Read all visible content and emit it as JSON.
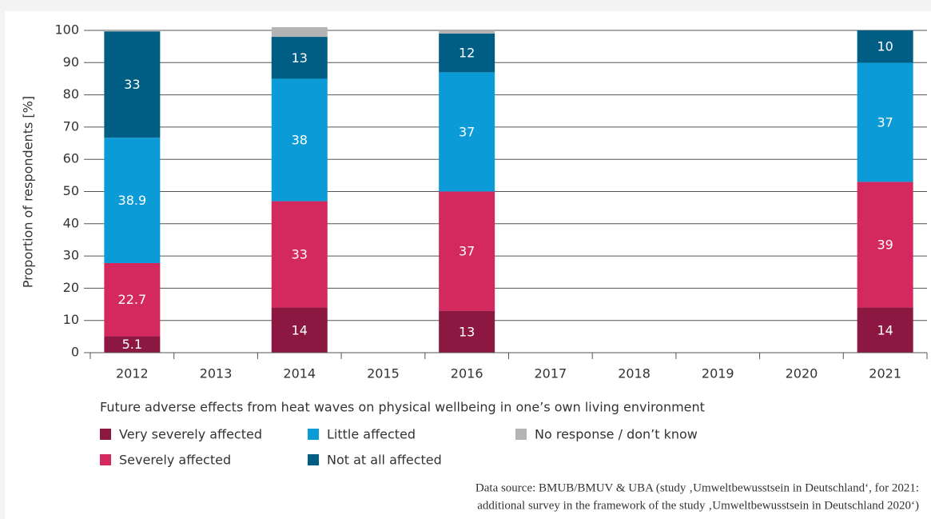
{
  "chart_data": {
    "type": "stacked_bar",
    "y_label": "Proportion of respondents [%]",
    "legend_title": "Future adverse effects from heat waves on physical wellbeing in one’s own living environment",
    "categories": [
      "2012",
      "2013",
      "2014",
      "2015",
      "2016",
      "2017",
      "2018",
      "2019",
      "2020",
      "2021"
    ],
    "series": [
      {
        "name": "Very severely affected",
        "color": "#8c1842",
        "values": [
          5.1,
          null,
          14,
          null,
          13,
          null,
          null,
          null,
          null,
          14
        ]
      },
      {
        "name": "Severely affected",
        "color": "#d4295e",
        "values": [
          22.7,
          null,
          33,
          null,
          37,
          null,
          null,
          null,
          null,
          39
        ]
      },
      {
        "name": "Little affected",
        "color": "#0b9bd7",
        "values": [
          38.9,
          null,
          38,
          null,
          37,
          null,
          null,
          null,
          null,
          37
        ]
      },
      {
        "name": "Not at all affected",
        "color": "#005e84",
        "values": [
          33,
          null,
          13,
          null,
          12,
          null,
          null,
          null,
          null,
          10
        ]
      },
      {
        "name": "No response / don’t know",
        "color": "#b4b4b4",
        "values": [
          0.3,
          null,
          3,
          null,
          1,
          null,
          null,
          null,
          null,
          null
        ],
        "show_labels": false
      }
    ],
    "ylim": [
      0,
      100
    ],
    "yticks": [
      0,
      10,
      20,
      30,
      40,
      50,
      60,
      70,
      80,
      90,
      100
    ],
    "grid": true,
    "source": [
      "Data source: BMUB/BMUV & UBA (study ‚Umweltbewusstsein in Deutschland‘, for 2021:",
      "additional survey in the framework of the study ‚Umweltbewusstsein in Deutschland 2020‘)"
    ]
  }
}
